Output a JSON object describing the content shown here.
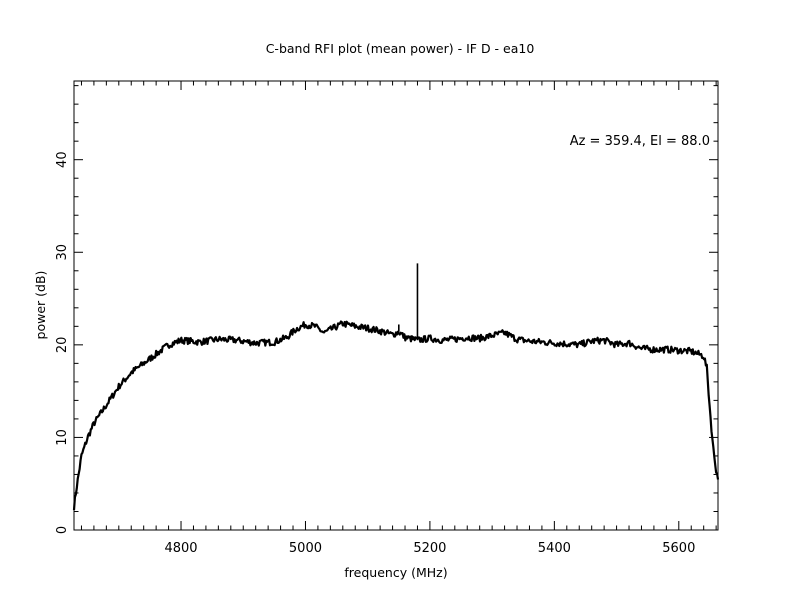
{
  "chart_data": {
    "type": "line",
    "title": "C-band RFI plot (mean power) - IF D - ea10",
    "xlabel": "frequency (MHz)",
    "ylabel": "power (dB)",
    "xlim": [
      4628,
      5663
    ],
    "ylim": [
      0,
      48.5
    ],
    "x_ticks": [
      4800,
      5000,
      5200,
      5400,
      5600
    ],
    "y_ticks": [
      0,
      10,
      20,
      30,
      40
    ],
    "x_tick_labels": [
      "4800",
      "5000",
      "5200",
      "5400",
      "5600"
    ],
    "y_tick_labels": [
      "0",
      "10",
      "20",
      "30",
      "40"
    ],
    "grid": false,
    "annotation": "Az = 359.4, El = 88.0",
    "series": [
      {
        "x": [
          4628,
          4632,
          4640,
          4650,
          4660,
          4680,
          4700,
          4720,
          4740,
          4760,
          4780,
          4800,
          4830,
          4860,
          4890,
          4920,
          4950,
          4970,
          4985,
          5000,
          5015,
          5030,
          5045,
          5060,
          5080,
          5100,
          5120,
          5140,
          5150,
          5160,
          5180,
          5200,
          5220,
          5240,
          5260,
          5280,
          5300,
          5320,
          5340,
          5360,
          5380,
          5400,
          5420,
          5440,
          5460,
          5480,
          5500,
          5520,
          5540,
          5560,
          5580,
          5600,
          5620,
          5640,
          5645,
          5650,
          5655,
          5660,
          5663
        ],
        "y": [
          2.5,
          4.5,
          8,
          10,
          11.5,
          13.5,
          15.5,
          17,
          18,
          19,
          20,
          20.5,
          20.3,
          20.6,
          20.5,
          20.2,
          20.3,
          20.8,
          21.7,
          22.2,
          22.0,
          21.3,
          21.8,
          22.3,
          22.0,
          21.8,
          21.5,
          21.1,
          21.4,
          20.8,
          20.5,
          20.7,
          20.5,
          20.6,
          20.8,
          20.7,
          21.0,
          21.3,
          20.6,
          20.4,
          20.3,
          20.2,
          20.1,
          20.0,
          20.4,
          20.5,
          20.0,
          20.2,
          19.6,
          19.5,
          19.5,
          19.4,
          19.3,
          18.8,
          17.5,
          13,
          9,
          6.5,
          5.5
        ]
      }
    ],
    "spikes": [
      {
        "x": 5180,
        "y": 28.8
      },
      {
        "x": 5150,
        "y": 22.2
      }
    ]
  }
}
